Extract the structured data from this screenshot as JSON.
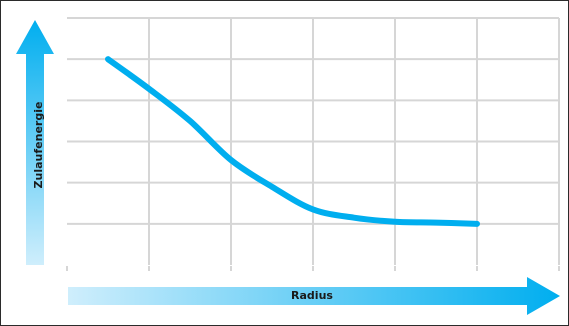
{
  "chart_data": {
    "type": "line",
    "title": "",
    "xlabel": "Radius",
    "ylabel": "Zulaufenergie",
    "grid": true,
    "legend": "none",
    "series": [
      {
        "points": [
          [
            0.5,
            5.0
          ],
          [
            1.0,
            4.28
          ],
          [
            1.5,
            3.5
          ],
          [
            2.0,
            2.55
          ],
          [
            2.5,
            1.9
          ],
          [
            3.0,
            1.35
          ],
          [
            3.5,
            1.15
          ],
          [
            4.0,
            1.05
          ],
          [
            4.5,
            1.03
          ],
          [
            5.0,
            1.0
          ]
        ]
      }
    ],
    "xlim": [
      0,
      6
    ],
    "ylim": [
      0,
      6
    ],
    "line_color": "#00aeef",
    "grid_color": "#d6d6d6",
    "arrow_gradient": [
      "#cfeefc",
      "#00aeef"
    ]
  }
}
